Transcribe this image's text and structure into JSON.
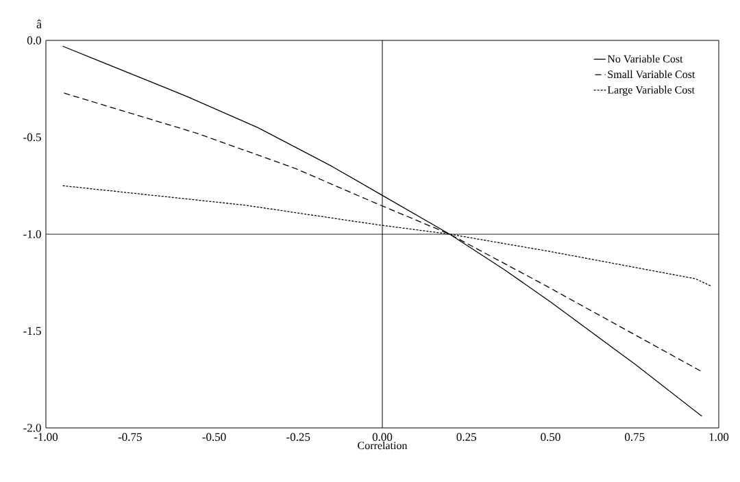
{
  "chart_data": {
    "type": "line",
    "xlabel": "Correlation",
    "ylabel": "â",
    "xlim": [
      -1,
      1
    ],
    "ylim": [
      -2,
      0
    ],
    "xticks": [
      {
        "value": -1,
        "label": "-1.00"
      },
      {
        "value": -0.75,
        "label": "-0.75"
      },
      {
        "value": -0.5,
        "label": "-0.50"
      },
      {
        "value": -0.25,
        "label": "-0.25"
      },
      {
        "value": 0,
        "label": "0.00"
      },
      {
        "value": 0.25,
        "label": "0.25"
      },
      {
        "value": 0.5,
        "label": "0.50"
      },
      {
        "value": 0.75,
        "label": "0.75"
      },
      {
        "value": 1,
        "label": "1.00"
      }
    ],
    "yticks": [
      {
        "value": 0,
        "label": "0.0"
      },
      {
        "value": -0.5,
        "label": "-0.5"
      },
      {
        "value": -1,
        "label": "-1.0"
      },
      {
        "value": -1.5,
        "label": "-1.5"
      },
      {
        "value": -2,
        "label": "-2.0"
      }
    ],
    "ref_lines": [
      {
        "axis": "x",
        "value": 0
      },
      {
        "axis": "y",
        "value": -1
      }
    ],
    "legend": "top right",
    "grid": false,
    "marker": "none",
    "series": [
      {
        "name": "No Variable Cost",
        "color": "#000000",
        "line_style": "solid",
        "x": [
          -0.95,
          -0.85,
          -0.58,
          -0.37,
          -0.15,
          0.0,
          0.2,
          0.36,
          0.5,
          0.75,
          0.95
        ],
        "values": [
          -0.03,
          -0.1,
          -0.29,
          -0.45,
          -0.65,
          -0.8,
          -1.0,
          -1.18,
          -1.35,
          -1.67,
          -1.94
        ]
      },
      {
        "name": "Small Variable Cost",
        "color": "#000000",
        "line_style": "dashed",
        "x": [
          -0.95,
          -0.55,
          -0.26,
          -0.02,
          0.2,
          0.49,
          0.72,
          0.95
        ],
        "values": [
          -0.27,
          -0.48,
          -0.66,
          -0.84,
          -1.0,
          -1.27,
          -1.49,
          -1.71
        ]
      },
      {
        "name": "Large Variable Cost",
        "color": "#000000",
        "line_style": "dotted",
        "x": [
          -0.95,
          -0.41,
          -0.02,
          0.2,
          0.5,
          0.93,
          0.98
        ],
        "values": [
          -0.75,
          -0.85,
          -0.95,
          -1.0,
          -1.09,
          -1.23,
          -1.27
        ]
      }
    ]
  }
}
